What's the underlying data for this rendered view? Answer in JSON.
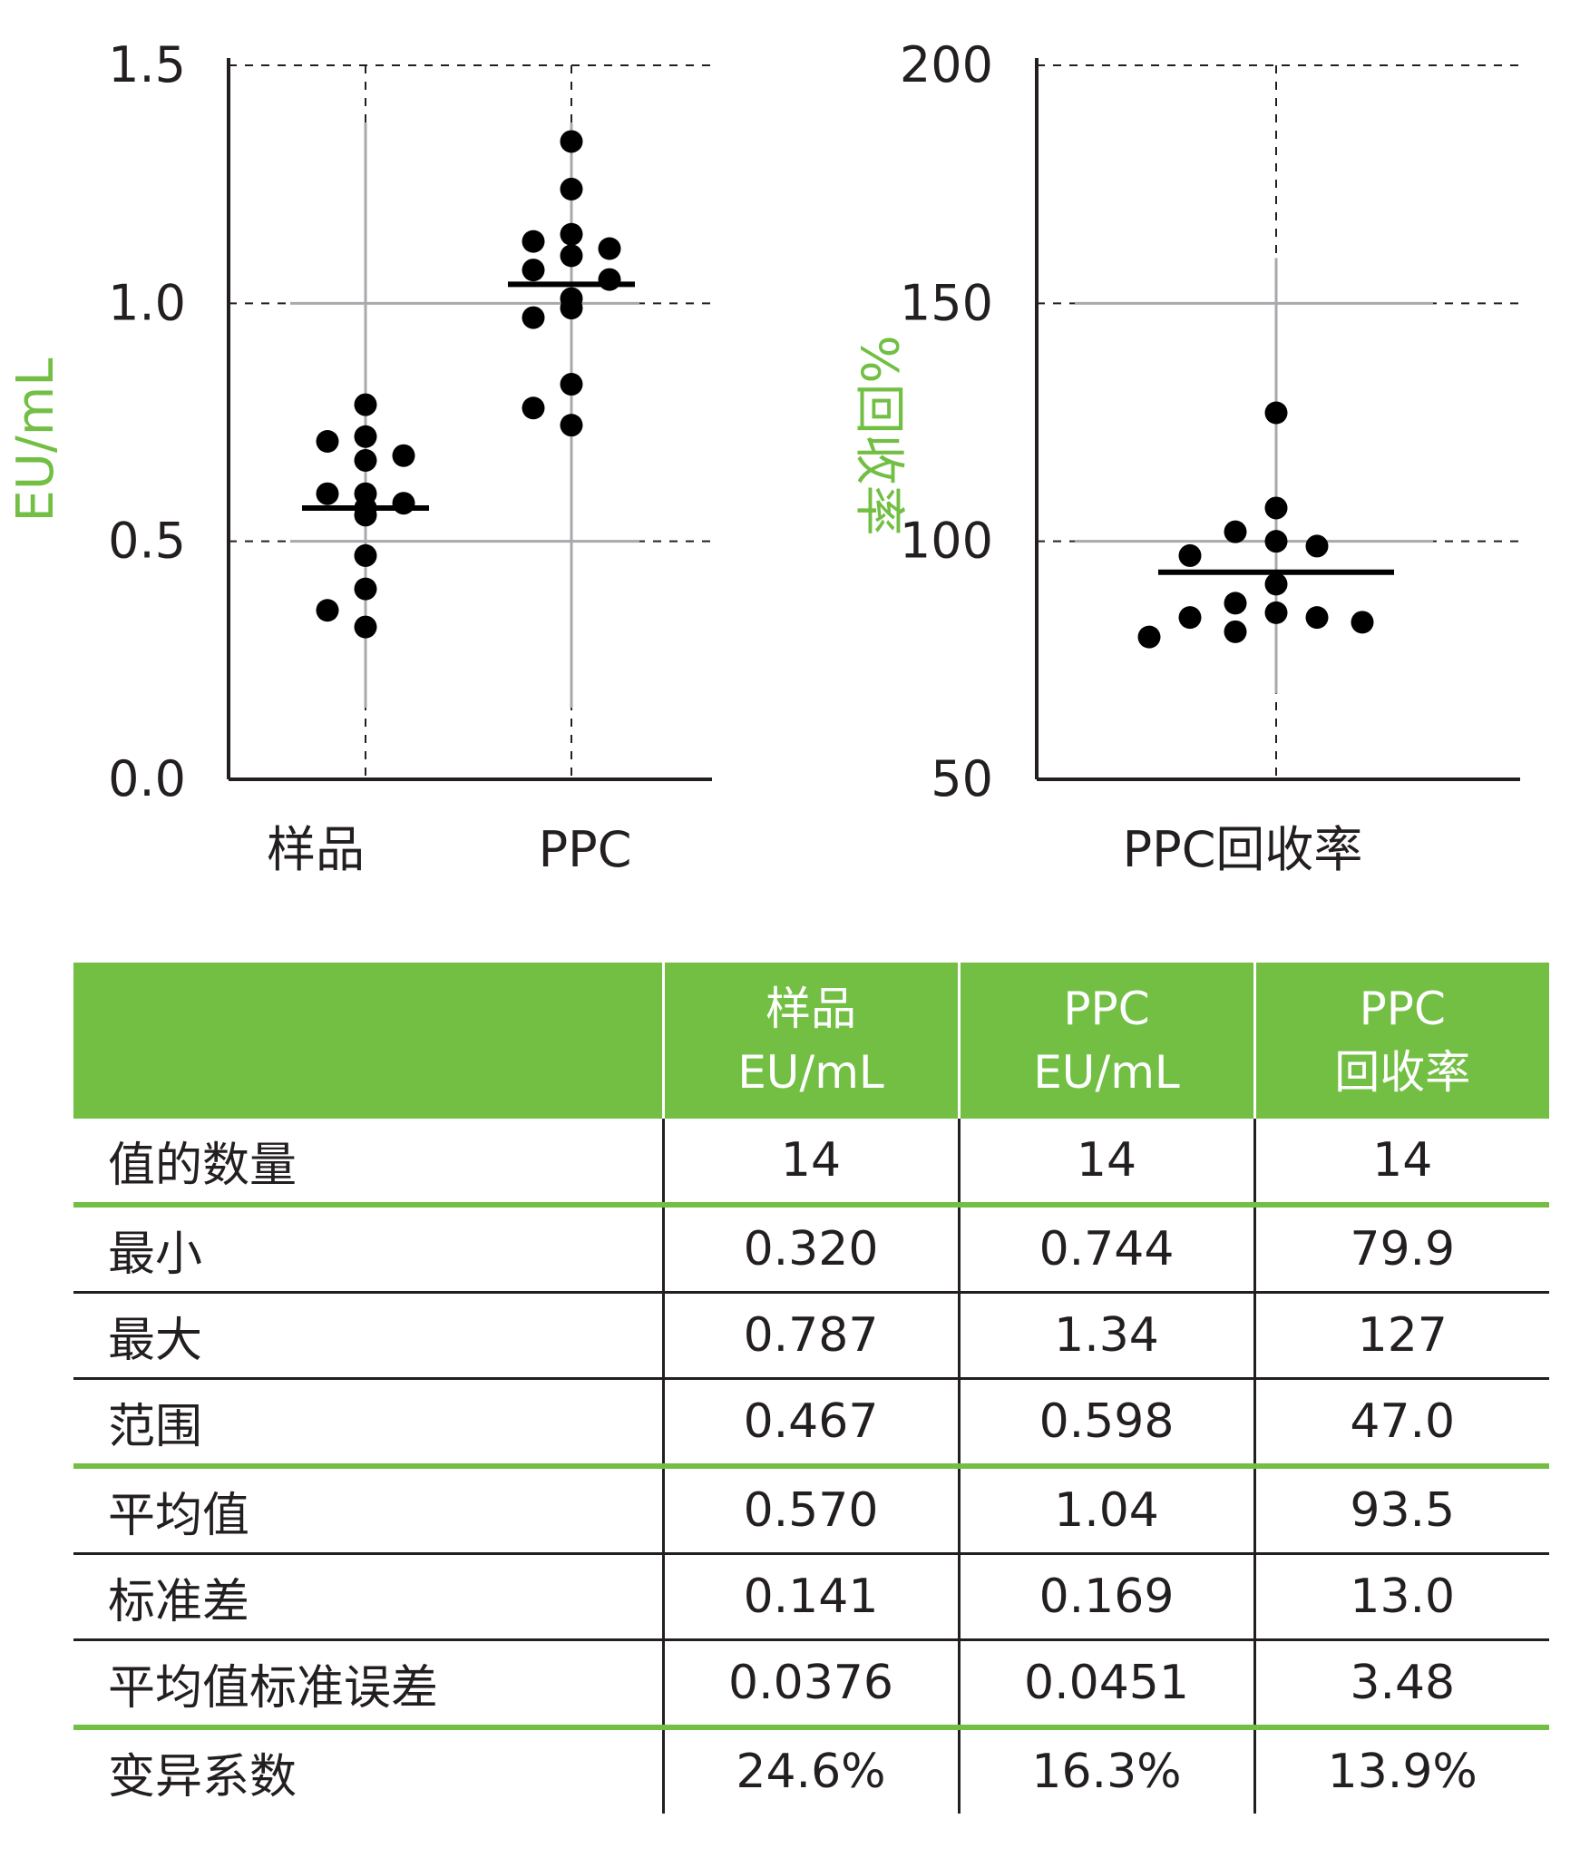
{
  "chart_data": [
    {
      "type": "scatter",
      "ylabel": "EU/mL",
      "ylim": [
        0.0,
        1.5
      ],
      "yticks": [
        "0.0",
        "0.5",
        "1.0",
        "1.5"
      ],
      "categories": [
        "样品",
        "PPC"
      ],
      "grid": true,
      "points": [
        {
          "category": "样品",
          "values": [
            0.787,
            0.72,
            0.71,
            0.68,
            0.67,
            0.6,
            0.6,
            0.58,
            0.57,
            0.555,
            0.47,
            0.4,
            0.355,
            0.32
          ]
        },
        {
          "category": "PPC",
          "values": [
            1.34,
            1.24,
            1.145,
            1.13,
            1.115,
            1.1,
            1.07,
            1.05,
            0.99,
            0.97,
            0.83,
            0.78,
            0.744,
            1.01
          ]
        }
      ],
      "means": [
        0.57,
        1.04
      ]
    },
    {
      "type": "scatter",
      "ylabel": "%回收率",
      "ylim": [
        50,
        200
      ],
      "yticks": [
        "50",
        "100",
        "150",
        "200"
      ],
      "categories": [
        "PPC回收率"
      ],
      "grid": true,
      "points": [
        {
          "category": "PPC回收率",
          "values": [
            127,
            107,
            102,
            100,
            99,
            97,
            91,
            87,
            85,
            84,
            84,
            83,
            81,
            79.9
          ]
        }
      ],
      "means": [
        93.5
      ]
    }
  ],
  "table": {
    "headers": [
      [
        "",
        ""
      ],
      [
        "样品",
        "EU/mL"
      ],
      [
        "PPC",
        "EU/mL"
      ],
      [
        "PPC",
        "回收率"
      ]
    ],
    "rows": [
      [
        "值的数量",
        "14",
        "14",
        "14"
      ],
      [
        "最小",
        "0.320",
        "0.744",
        "79.9"
      ],
      [
        "最大",
        "0.787",
        "1.34",
        "127"
      ],
      [
        "范围",
        "0.467",
        "0.598",
        "47.0"
      ],
      [
        "平均值",
        "0.570",
        "1.04",
        "93.5"
      ],
      [
        "标准差",
        "0.141",
        "0.169",
        "13.0"
      ],
      [
        "平均值标准误差",
        "0.0376",
        "0.0451",
        "3.48"
      ],
      [
        "变异系数",
        "24.6%",
        "16.3%",
        "13.9%"
      ]
    ]
  },
  "colors": {
    "accent": "#72bf44",
    "text": "#231f20"
  }
}
